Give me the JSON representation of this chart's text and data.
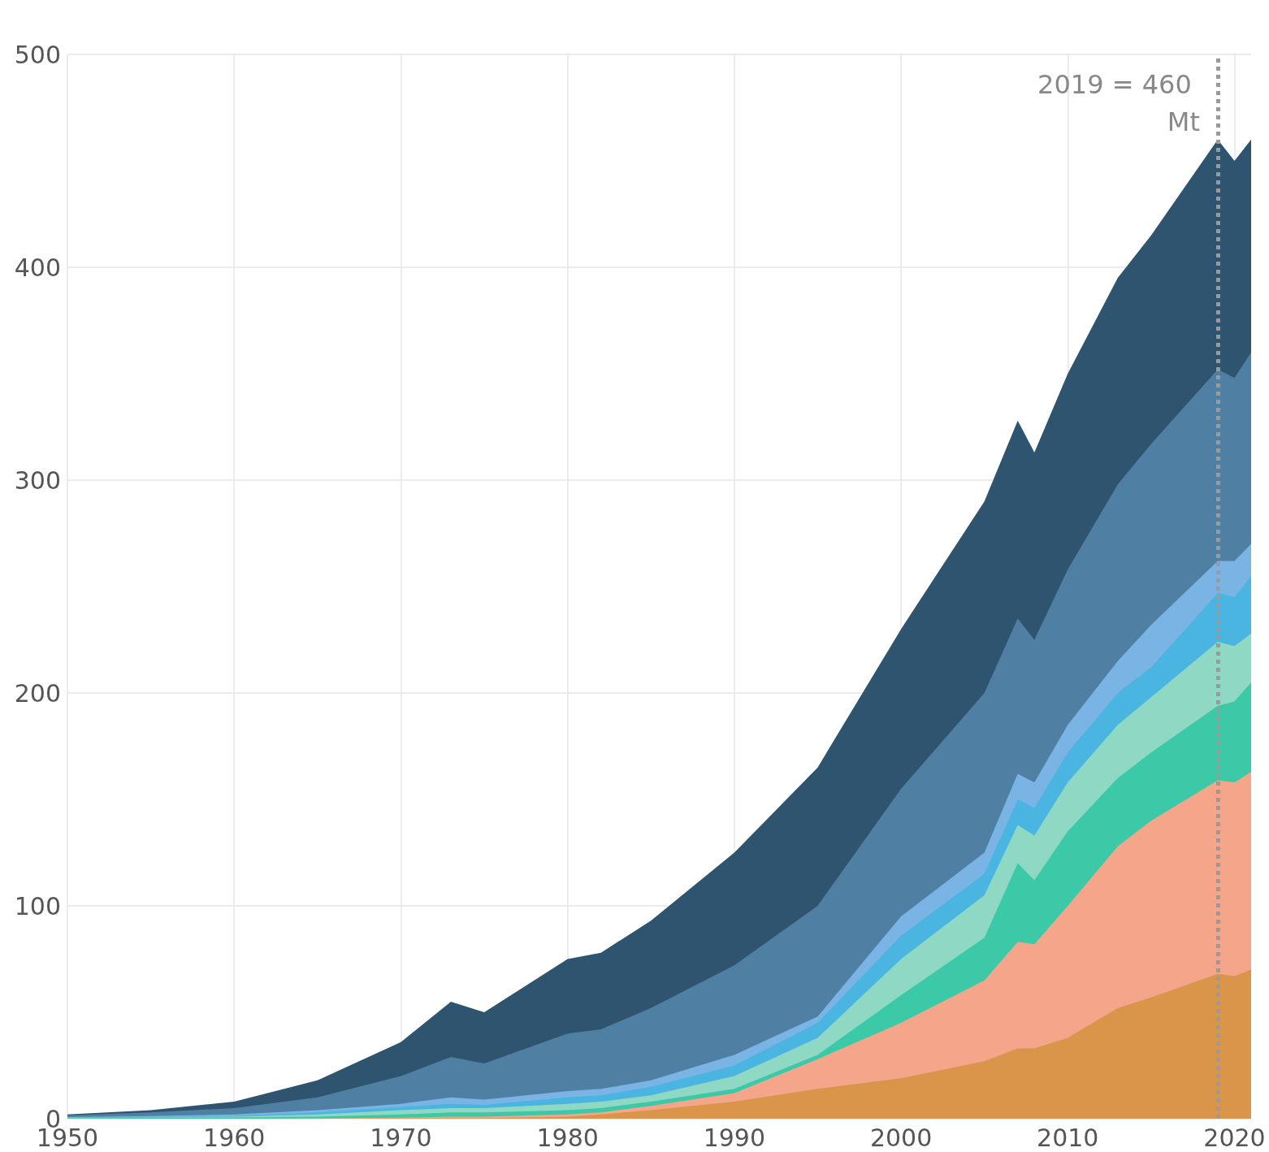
{
  "chart_data": {
    "type": "area",
    "stacked": true,
    "x": [
      1950,
      1955,
      1960,
      1965,
      1970,
      1973,
      1975,
      1980,
      1982,
      1985,
      1990,
      1995,
      2000,
      2005,
      2007,
      2008,
      2010,
      2013,
      2015,
      2019,
      2020,
      2021
    ],
    "series": [
      {
        "color": "#d9964a",
        "values": [
          0,
          0,
          0,
          0,
          0.2,
          0.3,
          0.3,
          1,
          2,
          4,
          8,
          14,
          19,
          27,
          33,
          33,
          38,
          52,
          57,
          68,
          67,
          70
        ]
      },
      {
        "color": "#f4a58a",
        "values": [
          0,
          0,
          0,
          0.1,
          0.3,
          0.7,
          0.7,
          1,
          1,
          2,
          4,
          14,
          26,
          38,
          50,
          49,
          62,
          76,
          83,
          91,
          91,
          93
        ]
      },
      {
        "color": "#3cc9a8",
        "values": [
          0.2,
          0.4,
          0.6,
          0.9,
          1.5,
          2,
          2,
          2,
          2,
          2,
          2,
          2,
          13,
          20,
          37,
          30,
          35,
          32,
          32,
          35,
          38,
          42
        ]
      },
      {
        "color": "#8fd8c4",
        "values": [
          0.1,
          0.1,
          0.4,
          1,
          2,
          2,
          2,
          3,
          3,
          3,
          6,
          8,
          17,
          20,
          18,
          21,
          23,
          25,
          26,
          30,
          26,
          23
        ]
      },
      {
        "color": "#4ab5e0",
        "values": [
          0.1,
          0.2,
          0.3,
          1,
          1.5,
          2,
          1.5,
          3,
          3,
          4,
          5,
          7,
          11,
          10,
          12,
          13,
          14,
          15,
          14,
          23,
          23,
          27
        ]
      },
      {
        "color": "#7ab4e4",
        "values": [
          0.4,
          0.5,
          0.7,
          1,
          1.5,
          3,
          2.5,
          3,
          3,
          3,
          5,
          3,
          9,
          10,
          12,
          12,
          13,
          15,
          20,
          15,
          17,
          15
        ]
      },
      {
        "color": "#4f7fa3",
        "values": [
          0.7,
          1.8,
          3,
          6,
          13,
          19,
          17,
          27,
          28,
          34,
          42,
          52,
          60,
          75,
          73,
          67,
          73,
          83,
          85,
          90,
          86,
          90
        ]
      },
      {
        "color": "#2e5470",
        "values": [
          0.5,
          1,
          3,
          8,
          16,
          26,
          24,
          35,
          36,
          41,
          53,
          65,
          75,
          90,
          93,
          88,
          92,
          97,
          98,
          108,
          102,
          100
        ]
      }
    ],
    "xlim": [
      1950,
      2021
    ],
    "xticks": [
      1950,
      1960,
      1970,
      1980,
      1990,
      2000,
      2010,
      2020
    ],
    "ylim": [
      0,
      500
    ],
    "yticks": [
      0,
      100,
      200,
      300,
      400,
      500
    ],
    "grid": true,
    "ref_lines": [
      {
        "axis": "x",
        "value": 2019,
        "label": "2019 = 460 Mt",
        "color": "#9a9a9a",
        "line_style": "dotted"
      }
    ]
  }
}
